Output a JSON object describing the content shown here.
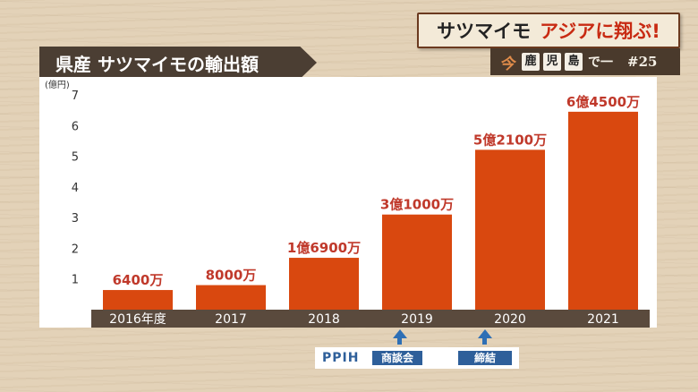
{
  "banner": {
    "main_left": "サツマイモ",
    "main_right": "アジアに翔ぶ!",
    "sub_kon": "今",
    "sub_chars": [
      "鹿",
      "児",
      "島"
    ],
    "sub_de": "で一",
    "sub_episode": "#25"
  },
  "title": "県産 サツマイモの輸出額",
  "notes": {
    "ppih": "PPIH",
    "tag1": "商談会",
    "tag2": "締結"
  },
  "colors": {
    "bar": "#d9480f",
    "label": "#c0392b",
    "axis_band": "#5a4a3d"
  },
  "chart_data": {
    "type": "bar",
    "title": "県産 サツマイモの輸出額",
    "ylabel": "(億円)",
    "ylim": [
      0,
      7
    ],
    "yticks": [
      1,
      2,
      3,
      4,
      5,
      6,
      7
    ],
    "categories": [
      "2016年度",
      "2017",
      "2018",
      "2019",
      "2020",
      "2021"
    ],
    "values": [
      0.64,
      0.8,
      1.69,
      3.1,
      5.21,
      6.45
    ],
    "data_labels": [
      "6400万",
      "8000万",
      "1億6900万",
      "3億1000万",
      "5億2100万",
      "6億4500万"
    ],
    "grid": false
  }
}
